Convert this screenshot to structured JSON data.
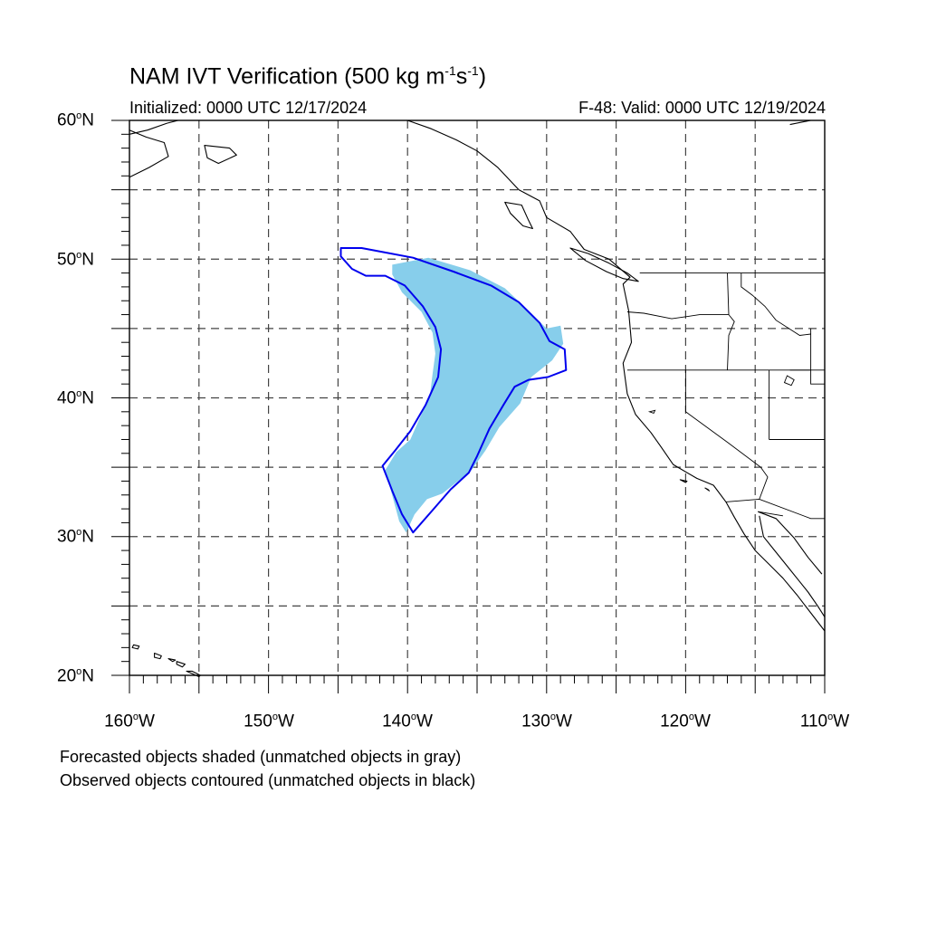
{
  "title_main": "NAM IVT Verification (500 kg m",
  "title_exp1": "-1",
  "title_mid": "s",
  "title_exp2": "-1",
  "title_end": ")",
  "initialized": "Initialized: 0000 UTC 12/17/2024",
  "valid": "F-48: Valid: 0000 UTC 12/19/2024",
  "lat_labels": [
    {
      "num": "60",
      "hemi": "N"
    },
    {
      "num": "50",
      "hemi": "N"
    },
    {
      "num": "40",
      "hemi": "N"
    },
    {
      "num": "30",
      "hemi": "N"
    },
    {
      "num": "20",
      "hemi": "N"
    }
  ],
  "lon_labels": [
    {
      "num": "160",
      "hemi": "W"
    },
    {
      "num": "150",
      "hemi": "W"
    },
    {
      "num": "140",
      "hemi": "W"
    },
    {
      "num": "130",
      "hemi": "W"
    },
    {
      "num": "120",
      "hemi": "W"
    },
    {
      "num": "110",
      "hemi": "W"
    }
  ],
  "degree_symbol": "o",
  "note_forecast": "Forecasted objects shaded (unmatched objects in gray)",
  "note_observed": "Observed objects contoured (unmatched objects in black)",
  "colors": {
    "forecast_fill": "#87ceeb",
    "observed_contour": "#0000ee",
    "coastline": "#000000",
    "grid": "#444444"
  },
  "map": {
    "lon_range": [
      -160,
      -110
    ],
    "lat_range": [
      20,
      60
    ],
    "forecast_object": [
      [
        -141.1,
        49.6
      ],
      [
        -138.5,
        50.1
      ],
      [
        -135.5,
        49.2
      ],
      [
        -133.0,
        47.9
      ],
      [
        -131.2,
        46.2
      ],
      [
        -130.0,
        45.0
      ],
      [
        -129.0,
        45.2
      ],
      [
        -128.8,
        43.9
      ],
      [
        -129.6,
        42.7
      ],
      [
        -131.1,
        41.5
      ],
      [
        -131.9,
        39.6
      ],
      [
        -133.4,
        37.9
      ],
      [
        -134.4,
        36.2
      ],
      [
        -135.4,
        34.8
      ],
      [
        -136.5,
        33.9
      ],
      [
        -137.5,
        33.1
      ],
      [
        -138.6,
        32.7
      ],
      [
        -139.5,
        31.6
      ],
      [
        -140.1,
        30.3
      ],
      [
        -140.6,
        31.1
      ],
      [
        -141.0,
        32.6
      ],
      [
        -141.6,
        34.8
      ],
      [
        -140.8,
        36.1
      ],
      [
        -139.8,
        37.0
      ],
      [
        -139.1,
        38.6
      ],
      [
        -138.4,
        40.1
      ],
      [
        -138.2,
        41.7
      ],
      [
        -138.0,
        43.2
      ],
      [
        -138.2,
        44.7
      ],
      [
        -139.0,
        46.2
      ],
      [
        -140.4,
        47.6
      ],
      [
        -141.1,
        48.9
      ]
    ],
    "observed_object": [
      [
        -144.8,
        50.8
      ],
      [
        -143.3,
        50.8
      ],
      [
        -141.7,
        50.5
      ],
      [
        -139.6,
        50.1
      ],
      [
        -136.7,
        49.1
      ],
      [
        -134.0,
        48.1
      ],
      [
        -132.0,
        46.9
      ],
      [
        -130.5,
        45.4
      ],
      [
        -129.8,
        44.1
      ],
      [
        -128.7,
        43.5
      ],
      [
        -128.6,
        42.0
      ],
      [
        -129.9,
        41.5
      ],
      [
        -131.3,
        41.3
      ],
      [
        -132.3,
        40.8
      ],
      [
        -133.1,
        39.5
      ],
      [
        -134.1,
        37.8
      ],
      [
        -135.0,
        35.8
      ],
      [
        -135.6,
        34.6
      ],
      [
        -136.9,
        33.4
      ],
      [
        -138.2,
        31.9
      ],
      [
        -139.6,
        30.3
      ],
      [
        -140.4,
        31.6
      ],
      [
        -141.1,
        33.3
      ],
      [
        -141.8,
        35.1
      ],
      [
        -140.9,
        36.2
      ],
      [
        -139.8,
        37.6
      ],
      [
        -138.7,
        39.5
      ],
      [
        -137.8,
        41.5
      ],
      [
        -137.6,
        43.5
      ],
      [
        -138.0,
        45.1
      ],
      [
        -138.9,
        46.6
      ],
      [
        -140.2,
        48.1
      ],
      [
        -141.6,
        48.8
      ],
      [
        -143.0,
        48.8
      ],
      [
        -144.0,
        49.3
      ],
      [
        -144.8,
        50.2
      ]
    ],
    "coastline_na": [
      [
        -140.0,
        60.0
      ],
      [
        -138.3,
        59.4
      ],
      [
        -136.5,
        58.6
      ],
      [
        -135.0,
        57.8
      ],
      [
        -133.5,
        56.6
      ],
      [
        -132.0,
        55.0
      ],
      [
        -130.5,
        54.2
      ],
      [
        -130.0,
        53.0
      ],
      [
        -128.3,
        52.0
      ],
      [
        -127.3,
        50.7
      ],
      [
        -125.5,
        50.0
      ],
      [
        -124.0,
        48.7
      ],
      [
        -124.5,
        48.2
      ],
      [
        -124.1,
        46.3
      ],
      [
        -123.9,
        44.0
      ],
      [
        -124.5,
        42.5
      ],
      [
        -124.2,
        40.3
      ],
      [
        -123.6,
        38.8
      ],
      [
        -122.5,
        37.5
      ],
      [
        -121.8,
        36.5
      ],
      [
        -120.9,
        35.2
      ],
      [
        -119.2,
        34.2
      ],
      [
        -118.0,
        33.7
      ],
      [
        -117.1,
        32.5
      ],
      [
        -116.5,
        31.4
      ],
      [
        -115.8,
        30.2
      ],
      [
        -115.0,
        29.0
      ],
      [
        -114.0,
        28.0
      ],
      [
        -113.0,
        27.0
      ],
      [
        -112.0,
        25.8
      ],
      [
        -111.0,
        24.5
      ],
      [
        -110.0,
        23.2
      ]
    ],
    "coastline_baja_gulf": [
      [
        -114.7,
        31.5
      ],
      [
        -114.4,
        30.0
      ],
      [
        -113.6,
        29.0
      ],
      [
        -112.8,
        28.0
      ],
      [
        -112.0,
        27.0
      ],
      [
        -111.2,
        26.0
      ],
      [
        -110.5,
        25.0
      ],
      [
        -110.0,
        24.2
      ]
    ],
    "coastline_mainland_gulf": [
      [
        -114.8,
        31.8
      ],
      [
        -113.5,
        31.3
      ],
      [
        -112.2,
        29.9
      ],
      [
        -111.2,
        28.5
      ],
      [
        -110.2,
        27.3
      ]
    ],
    "vancouver_island": [
      [
        -128.3,
        50.8
      ],
      [
        -127.0,
        50.4
      ],
      [
        -125.5,
        49.7
      ],
      [
        -124.2,
        49.0
      ],
      [
        -123.4,
        48.4
      ],
      [
        -124.5,
        48.6
      ],
      [
        -125.7,
        49.1
      ],
      [
        -127.2,
        49.9
      ],
      [
        -128.3,
        50.8
      ]
    ],
    "haida_gwaii": [
      [
        -133.0,
        54.1
      ],
      [
        -131.8,
        53.9
      ],
      [
        -131.3,
        52.8
      ],
      [
        -131.0,
        52.2
      ],
      [
        -131.7,
        52.4
      ],
      [
        -132.6,
        53.3
      ],
      [
        -133.0,
        54.1
      ]
    ],
    "alaska_coast": [
      [
        -160.0,
        59.3
      ],
      [
        -158.8,
        58.8
      ],
      [
        -157.5,
        58.4
      ],
      [
        -157.2,
        57.4
      ],
      [
        -158.6,
        56.6
      ],
      [
        -160.0,
        55.9
      ]
    ],
    "alaska_north": [
      [
        -160.0,
        59.0
      ],
      [
        -158.7,
        59.3
      ],
      [
        -157.3,
        59.8
      ],
      [
        -156.5,
        60.0
      ]
    ],
    "kodiak": [
      [
        -154.6,
        58.2
      ],
      [
        -152.8,
        58.0
      ],
      [
        -152.3,
        57.5
      ],
      [
        -153.6,
        56.9
      ],
      [
        -154.4,
        57.3
      ],
      [
        -154.6,
        58.2
      ]
    ],
    "hudson_coast": [
      [
        -112.5,
        59.7
      ],
      [
        -111.0,
        60.0
      ]
    ],
    "hawaii_islands": [
      [
        [
          -159.7,
          22.2
        ],
        [
          -159.3,
          22.1
        ],
        [
          -159.4,
          21.9
        ],
        [
          -159.8,
          22.0
        ],
        [
          -159.7,
          22.2
        ]
      ],
      [
        [
          -158.2,
          21.6
        ],
        [
          -157.7,
          21.4
        ],
        [
          -157.8,
          21.2
        ],
        [
          -158.2,
          21.3
        ],
        [
          -158.2,
          21.6
        ]
      ],
      [
        [
          -157.2,
          21.2
        ],
        [
          -156.7,
          21.1
        ],
        [
          -156.9,
          21.0
        ],
        [
          -157.2,
          21.2
        ]
      ],
      [
        [
          -156.6,
          21.0
        ],
        [
          -156.0,
          20.8
        ],
        [
          -156.2,
          20.6
        ],
        [
          -156.6,
          20.8
        ],
        [
          -156.6,
          21.0
        ]
      ],
      [
        [
          -155.9,
          20.3
        ],
        [
          -155.0,
          19.9
        ],
        [
          -154.9,
          20.0
        ],
        [
          -155.5,
          20.3
        ],
        [
          -155.9,
          20.3
        ]
      ]
    ],
    "channel_islands": [
      [
        [
          -120.4,
          34.1
        ],
        [
          -119.9,
          34.0
        ],
        [
          -120.0,
          33.9
        ],
        [
          -120.4,
          34.1
        ]
      ],
      [
        [
          -118.6,
          33.5
        ],
        [
          -118.3,
          33.3
        ],
        [
          -118.4,
          33.4
        ],
        [
          -118.6,
          33.5
        ]
      ]
    ],
    "borders": [
      [
        [
          -123.3,
          49.0
        ],
        [
          -110.0,
          49.0
        ]
      ],
      [
        [
          -124.2,
          46.2
        ],
        [
          -123.0,
          46.1
        ],
        [
          -121.0,
          45.7
        ],
        [
          -119.0,
          46.0
        ],
        [
          -116.9,
          46.0
        ]
      ],
      [
        [
          -117.0,
          49.0
        ],
        [
          -116.9,
          46.0
        ],
        [
          -116.5,
          45.5
        ],
        [
          -116.9,
          44.5
        ],
        [
          -117.0,
          42.0
        ]
      ],
      [
        [
          -124.2,
          42.0
        ],
        [
          -110.0,
          42.0
        ]
      ],
      [
        [
          -120.0,
          42.0
        ],
        [
          -120.0,
          39.0
        ],
        [
          -117.0,
          36.8
        ],
        [
          -114.6,
          35.0
        ]
      ],
      [
        [
          -114.0,
          42.0
        ],
        [
          -114.0,
          37.0
        ]
      ],
      [
        [
          -114.0,
          37.0
        ],
        [
          -110.0,
          37.0
        ]
      ],
      [
        [
          -114.6,
          35.0
        ],
        [
          -114.1,
          34.3
        ],
        [
          -114.7,
          32.7
        ]
      ],
      [
        [
          -117.1,
          32.5
        ],
        [
          -114.7,
          32.7
        ],
        [
          -111.0,
          31.3
        ],
        [
          -110.0,
          31.3
        ]
      ],
      [
        [
          -116.0,
          49.0
        ],
        [
          -116.0,
          48.0
        ],
        [
          -115.2,
          47.4
        ],
        [
          -114.3,
          46.6
        ],
        [
          -113.5,
          45.6
        ],
        [
          -111.8,
          44.5
        ],
        [
          -111.0,
          44.6
        ]
      ],
      [
        [
          -111.0,
          45.0
        ],
        [
          -111.0,
          41.0
        ],
        [
          -110.0,
          41.0
        ]
      ],
      [
        [
          -112.5,
          42.0
        ],
        [
          -111.0,
          42.0
        ]
      ],
      [
        [
          -114.8,
          31.8
        ],
        [
          -113.0,
          31.5
        ]
      ]
    ],
    "lakes": [
      [
        [
          -112.7,
          41.6
        ],
        [
          -112.2,
          41.3
        ],
        [
          -112.4,
          40.9
        ],
        [
          -112.9,
          41.1
        ],
        [
          -112.7,
          41.6
        ]
      ],
      [
        [
          -122.2,
          39.1
        ],
        [
          -122.6,
          39.0
        ],
        [
          -122.3,
          38.9
        ],
        [
          -122.2,
          39.1
        ]
      ]
    ]
  }
}
